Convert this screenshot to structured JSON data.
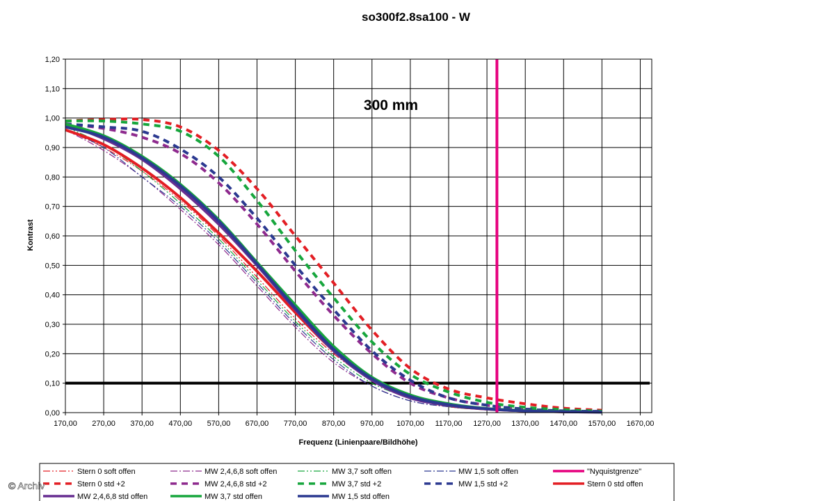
{
  "watermark": "© Archiv",
  "chart_data": {
    "type": "line",
    "title": "so300f2.8sa100 - W",
    "annotation": "300 mm",
    "xlabel": "Frequenz (Linienpaare/Bildhöhe)",
    "ylabel": "Kontrast",
    "xlim": [
      170,
      1700
    ],
    "ylim": [
      0,
      1.2
    ],
    "x_ticks": [
      "170,00",
      "270,00",
      "370,00",
      "470,00",
      "570,00",
      "670,00",
      "770,00",
      "870,00",
      "970,00",
      "1070,00",
      "1170,00",
      "1270,00",
      "1370,00",
      "1470,00",
      "1570,00",
      "1670,00"
    ],
    "y_ticks": [
      "0,00",
      "0,10",
      "0,20",
      "0,30",
      "0,40",
      "0,50",
      "0,60",
      "0,70",
      "0,80",
      "0,90",
      "1,00",
      "1,10",
      "1,20"
    ],
    "grid": true,
    "legend_position": "bottom",
    "x": [
      170,
      270,
      370,
      470,
      570,
      670,
      770,
      870,
      970,
      1070,
      1170,
      1270,
      1370,
      1470,
      1570
    ],
    "series": [
      {
        "name": "Stern 0 soft offen",
        "color": "#e31e24",
        "style": "dashdotdot",
        "width": 1.2,
        "values": [
          0.96,
          0.9,
          0.82,
          0.72,
          0.6,
          0.46,
          0.32,
          0.2,
          0.11,
          0.05,
          0.02,
          0.01,
          0.005,
          0.003,
          0.002
        ]
      },
      {
        "name": "MW 2,4,6,8 soft offen",
        "color": "#8e2a8e",
        "style": "dashdot",
        "width": 1.2,
        "values": [
          0.96,
          0.89,
          0.8,
          0.69,
          0.57,
          0.43,
          0.29,
          0.17,
          0.09,
          0.04,
          0.02,
          0.01,
          0.005,
          0.003,
          0.002
        ]
      },
      {
        "name": "MW 3,7 soft offen",
        "color": "#17a63d",
        "style": "dashdotdot",
        "width": 1.2,
        "values": [
          0.97,
          0.91,
          0.82,
          0.71,
          0.59,
          0.45,
          0.31,
          0.19,
          0.1,
          0.05,
          0.02,
          0.01,
          0.005,
          0.003,
          0.002
        ]
      },
      {
        "name": "MW 1,5 soft offen",
        "color": "#2b3990",
        "style": "dashdot",
        "width": 1.2,
        "values": [
          0.96,
          0.9,
          0.8,
          0.7,
          0.58,
          0.44,
          0.3,
          0.18,
          0.09,
          0.04,
          0.02,
          0.01,
          0.005,
          0.003,
          0.002
        ]
      },
      {
        "name": "\"Nyquistgrenze\"",
        "color": "#e6007e",
        "style": "vline",
        "width": 4,
        "x_value": 1296
      },
      {
        "name": "Stern 0 std +2",
        "color": "#e31e24",
        "style": "dash",
        "width": 4,
        "values": [
          0.99,
          0.995,
          0.995,
          0.97,
          0.89,
          0.76,
          0.6,
          0.44,
          0.28,
          0.15,
          0.08,
          0.05,
          0.03,
          0.015,
          0.008
        ]
      },
      {
        "name": "MW 2,4,6,8 std +2",
        "color": "#8e2a8e",
        "style": "dash",
        "width": 4,
        "values": [
          0.98,
          0.965,
          0.935,
          0.88,
          0.78,
          0.64,
          0.48,
          0.33,
          0.2,
          0.1,
          0.05,
          0.025,
          0.012,
          0.006,
          0.004
        ]
      },
      {
        "name": "MW 3,7 std +2",
        "color": "#17a63d",
        "style": "dash",
        "width": 4,
        "values": [
          0.99,
          0.99,
          0.98,
          0.955,
          0.87,
          0.72,
          0.55,
          0.39,
          0.24,
          0.13,
          0.07,
          0.035,
          0.018,
          0.01,
          0.005
        ]
      },
      {
        "name": "MW 1,5 std +2",
        "color": "#2b3990",
        "style": "dash",
        "width": 4,
        "values": [
          0.98,
          0.97,
          0.955,
          0.895,
          0.8,
          0.66,
          0.5,
          0.35,
          0.21,
          0.11,
          0.05,
          0.025,
          0.012,
          0.006,
          0.004
        ]
      },
      {
        "name": "Stern 0 std offen",
        "color": "#e31e24",
        "style": "solid",
        "width": 4,
        "values": [
          0.96,
          0.91,
          0.83,
          0.73,
          0.61,
          0.48,
          0.34,
          0.21,
          0.115,
          0.055,
          0.025,
          0.012,
          0.006,
          0.003,
          0.002
        ]
      },
      {
        "name": "MW 2,4,6,8 std offen",
        "color": "#662d91",
        "style": "solid",
        "width": 4,
        "values": [
          0.98,
          0.93,
          0.86,
          0.76,
          0.64,
          0.5,
          0.35,
          0.21,
          0.11,
          0.05,
          0.025,
          0.012,
          0.006,
          0.003,
          0.002
        ]
      },
      {
        "name": "MW 3,7 std offen",
        "color": "#17a63d",
        "style": "solid",
        "width": 4,
        "values": [
          0.98,
          0.94,
          0.87,
          0.775,
          0.655,
          0.51,
          0.365,
          0.225,
          0.12,
          0.06,
          0.03,
          0.014,
          0.007,
          0.004,
          0.002
        ]
      },
      {
        "name": "MW 1,5 std offen",
        "color": "#2b3990",
        "style": "solid",
        "width": 4,
        "values": [
          0.97,
          0.935,
          0.865,
          0.77,
          0.65,
          0.505,
          0.355,
          0.215,
          0.115,
          0.055,
          0.027,
          0.013,
          0.006,
          0.003,
          0.002
        ]
      }
    ],
    "reference_line": {
      "y": 0.1,
      "color": "#000000"
    }
  }
}
